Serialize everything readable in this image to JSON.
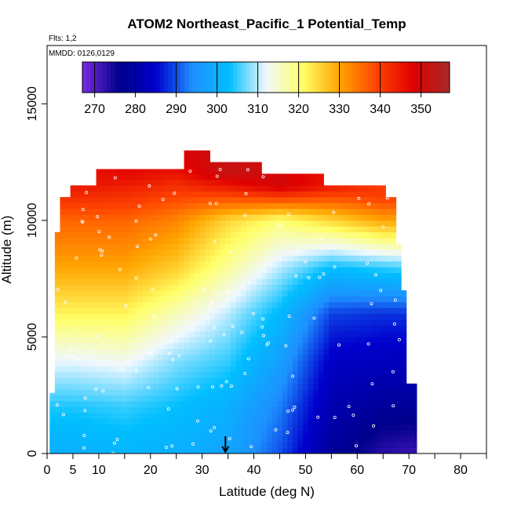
{
  "chart_data": {
    "type": "heatmap",
    "title": "ATOM2 Northeast_Pacific_1 Potential_Temp",
    "flights_label": "Flts: 1,2",
    "dates_label": "MMDD: 0126,0129",
    "xlabel": "Latitude (deg N)",
    "ylabel": "Altitude (m)",
    "xlim": [
      0,
      85
    ],
    "ylim": [
      0,
      17500
    ],
    "x_ticks": [
      0,
      5,
      10,
      20,
      30,
      40,
      50,
      60,
      70,
      80
    ],
    "x_minor_ticks": [
      15,
      25,
      35,
      45,
      55,
      65,
      75,
      85
    ],
    "y_ticks": [
      0,
      5000,
      10000,
      15000
    ],
    "colorbar": {
      "min": 267,
      "max": 357,
      "ticks": [
        270,
        280,
        290,
        300,
        310,
        320,
        330,
        340,
        350
      ],
      "colors": [
        "#7a2be0",
        "#00008b",
        "#0000cd",
        "#1e90ff",
        "#00bfff",
        "#f0f8ff",
        "#ffff66",
        "#ffa500",
        "#ff4500",
        "#e00000",
        "#a52a2a"
      ]
    },
    "marker": {
      "x": 34.5,
      "symbol": "arrow"
    },
    "coverage": {
      "lat_min": 0.5,
      "lat_max": 71,
      "alt_min": 0,
      "alt_max": 13000
    },
    "potential_temperature_profiles": [
      {
        "lat": 5,
        "alt": [
          0,
          2000,
          4000,
          6000,
          8000,
          10000,
          11500
        ],
        "theta": [
          300,
          304,
          312,
          322,
          330,
          336,
          345
        ]
      },
      {
        "lat": 15,
        "alt": [
          0,
          2000,
          4000,
          6000,
          8000,
          10000,
          12000
        ],
        "theta": [
          301,
          305,
          313,
          322,
          330,
          336,
          347
        ]
      },
      {
        "lat": 25,
        "alt": [
          0,
          2000,
          4000,
          6000,
          8000,
          10000,
          12500
        ],
        "theta": [
          300,
          303,
          308,
          316,
          326,
          333,
          348
        ]
      },
      {
        "lat": 35,
        "alt": [
          0,
          2000,
          4000,
          6000,
          8000,
          10000,
          12000
        ],
        "theta": [
          298,
          300,
          305,
          310,
          318,
          325,
          352
        ]
      },
      {
        "lat": 45,
        "alt": [
          0,
          2000,
          4000,
          6000,
          8000,
          10000,
          11500
        ],
        "theta": [
          290,
          293,
          297,
          302,
          310,
          320,
          350
        ]
      },
      {
        "lat": 55,
        "alt": [
          0,
          2000,
          4000,
          6000,
          8000,
          10000,
          11500
        ],
        "theta": [
          278,
          281,
          284,
          289,
          303,
          325,
          345
        ]
      },
      {
        "lat": 65,
        "alt": [
          0,
          2000,
          4000,
          6000,
          8000,
          10000,
          11000
        ],
        "theta": [
          273,
          278,
          283,
          288,
          305,
          330,
          340
        ]
      },
      {
        "lat": 70,
        "alt": [
          0,
          2000,
          4000,
          6000,
          8000,
          10000,
          11000
        ],
        "theta": [
          272,
          278,
          283,
          288,
          306,
          330,
          340
        ]
      }
    ]
  }
}
